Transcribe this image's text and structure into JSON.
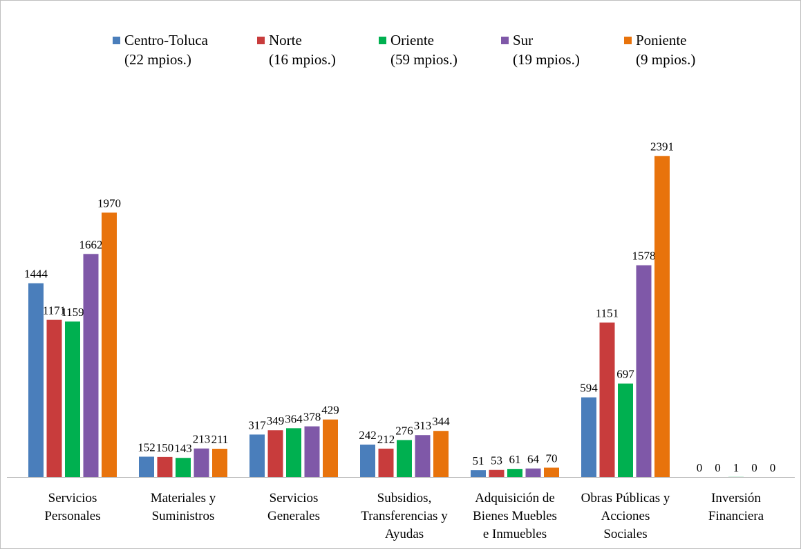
{
  "chart_data": {
    "type": "bar",
    "categories": [
      "Servicios\nPersonales",
      "Materiales y\nSuministros",
      "Servicios\nGenerales",
      "Subsidios,\nTransferencias y\nAyudas",
      "Adquisición de\nBienes Muebles\ne Inmuebles",
      "Obras Públicas y\nAcciones\nSociales",
      "Inversión\nFinanciera"
    ],
    "series": [
      {
        "name": "Centro-Toluca\n(22 mpios.)",
        "color": "#4a7ebb",
        "values": [
          1444,
          152,
          317,
          242,
          51,
          594,
          0
        ]
      },
      {
        "name": "Norte\n(16 mpios.)",
        "color": "#c83c3c",
        "values": [
          1171,
          150,
          349,
          212,
          53,
          1151,
          0
        ]
      },
      {
        "name": "Oriente\n(59 mpios.)",
        "color": "#00b050",
        "values": [
          1159,
          143,
          364,
          276,
          61,
          697,
          1
        ]
      },
      {
        "name": "Sur\n(19 mpios.)",
        "color": "#7f58a8",
        "values": [
          1662,
          213,
          378,
          313,
          64,
          1578,
          0
        ]
      },
      {
        "name": "Poniente\n(9 mpios.)",
        "color": "#e8730c",
        "values": [
          1970,
          211,
          429,
          344,
          70,
          2391,
          0
        ]
      }
    ],
    "ylim": [
      0,
      2400
    ],
    "grid": false,
    "legend": "top"
  }
}
